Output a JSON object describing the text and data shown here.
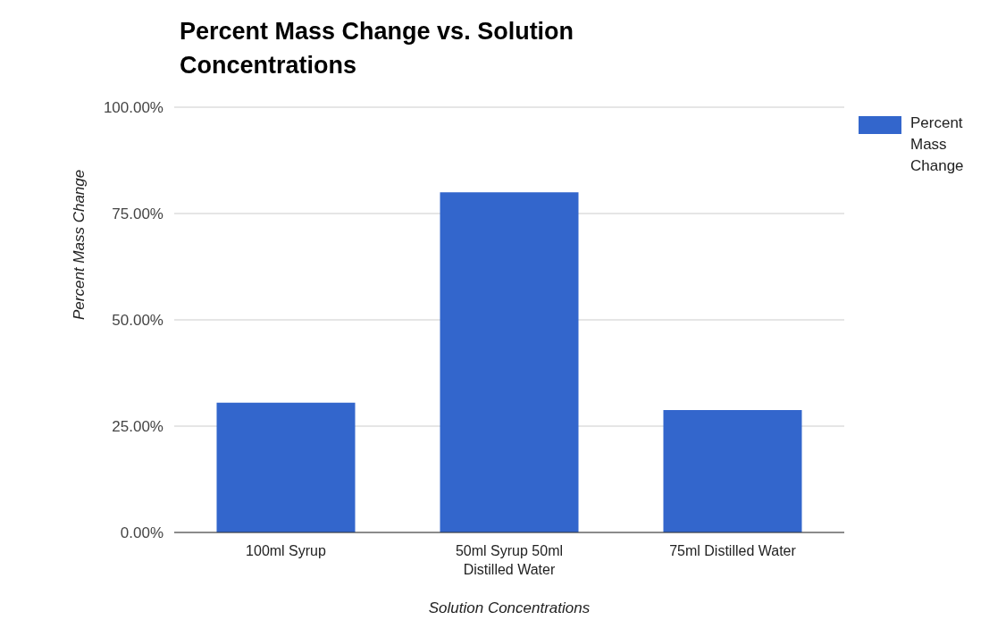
{
  "chart_data": {
    "type": "bar",
    "title": "Percent Mass Change vs. Solution Concentrations",
    "xlabel": "Solution Concentrations",
    "ylabel": "Percent Mass Change",
    "categories": [
      "100ml Syrup",
      "50ml Syrup 50ml Distilled Water",
      "75ml Distilled Water"
    ],
    "series": [
      {
        "name": "Percent Mass Change",
        "color": "#3366cc",
        "values": [
          30.5,
          80,
          28.8
        ]
      }
    ],
    "ylim": [
      0,
      100
    ],
    "yticks": [
      {
        "value": 0,
        "label": "0.00%"
      },
      {
        "value": 25,
        "label": "25.00%"
      },
      {
        "value": 50,
        "label": "50.00%"
      },
      {
        "value": 75,
        "label": "75.00%"
      },
      {
        "value": 100,
        "label": "100.00%"
      }
    ],
    "grid": "y",
    "legend": "right"
  }
}
